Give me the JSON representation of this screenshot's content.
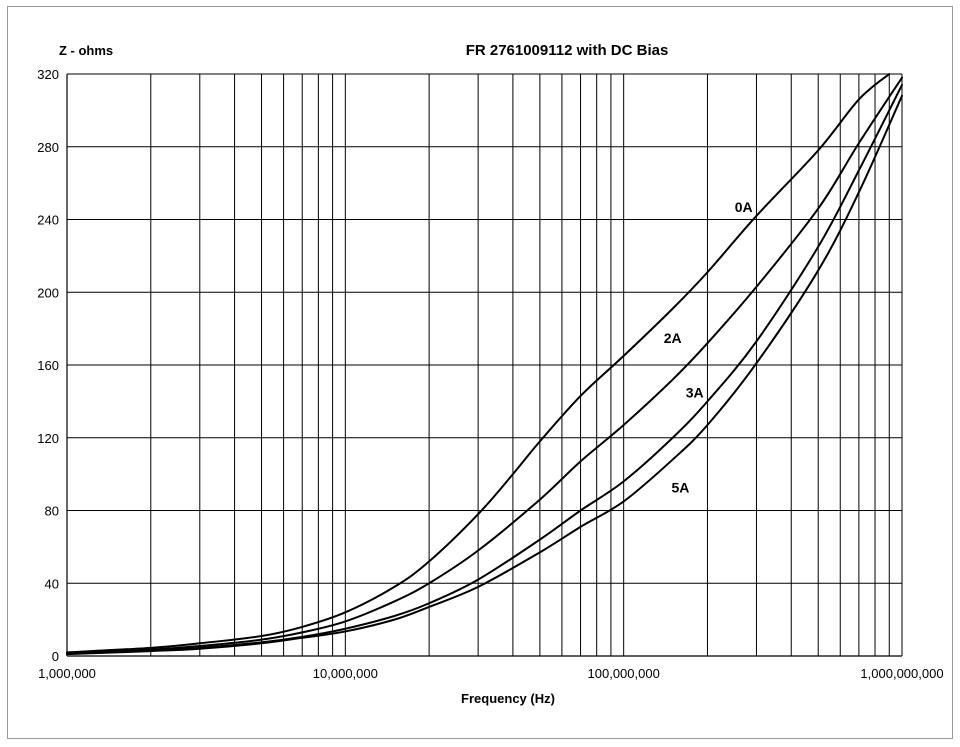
{
  "chart_data": {
    "type": "line",
    "title": "FR 2761009112 with DC Bias",
    "ylabel": "Z - ohms",
    "xlabel": "Frequency (Hz)",
    "x_scale": "log",
    "xlim": [
      1000000,
      1000000000
    ],
    "ylim": [
      0,
      320
    ],
    "grid": true,
    "x_ticks": [
      1000000,
      10000000,
      100000000,
      1000000000
    ],
    "x_tick_labels": [
      "1,000,000",
      "10,000,000",
      "100,000,000",
      "1,000,000,000"
    ],
    "y_ticks": [
      0,
      40,
      80,
      120,
      160,
      200,
      240,
      280,
      320
    ],
    "y_tick_labels": [
      "0",
      "40",
      "80",
      "120",
      "160",
      "200",
      "240",
      "280",
      "320"
    ],
    "series": [
      {
        "name": "0A",
        "x": [
          1000000,
          2000000,
          3000000,
          5000000,
          7000000,
          10000000,
          15000000,
          20000000,
          30000000,
          40000000,
          50000000,
          70000000,
          100000000,
          150000000,
          200000000,
          300000000,
          500000000,
          700000000,
          900000000
        ],
        "y": [
          2,
          4.5,
          7,
          11,
          16,
          24,
          38,
          52,
          78,
          100,
          118,
          143,
          165,
          191,
          211,
          242,
          278,
          306,
          320
        ]
      },
      {
        "name": "2A",
        "x": [
          1000000,
          2000000,
          3000000,
          5000000,
          7000000,
          10000000,
          15000000,
          20000000,
          30000000,
          50000000,
          70000000,
          100000000,
          150000000,
          200000000,
          300000000,
          500000000,
          700000000,
          1000000000
        ],
        "y": [
          1.5,
          3.5,
          5.5,
          9,
          13,
          19,
          30,
          40,
          58,
          86,
          107,
          127,
          152,
          172,
          203,
          246,
          282,
          318
        ]
      },
      {
        "name": "3A",
        "x": [
          1000000,
          2000000,
          3000000,
          5000000,
          7000000,
          10000000,
          15000000,
          20000000,
          30000000,
          50000000,
          70000000,
          100000000,
          150000000,
          200000000,
          300000000,
          500000000,
          700000000,
          1000000000
        ],
        "y": [
          1.2,
          3,
          4.5,
          7.5,
          10.5,
          15,
          22,
          29,
          42,
          64,
          80,
          96,
          120,
          140,
          173,
          225,
          267,
          314
        ]
      },
      {
        "name": "5A",
        "x": [
          1000000,
          2000000,
          3000000,
          5000000,
          7000000,
          10000000,
          15000000,
          20000000,
          30000000,
          50000000,
          70000000,
          100000000,
          150000000,
          200000000,
          300000000,
          500000000,
          700000000,
          1000000000
        ],
        "y": [
          1,
          2.7,
          4,
          7,
          10,
          13.5,
          20,
          27,
          38,
          57,
          71,
          85,
          108,
          127,
          161,
          212,
          255,
          308
        ]
      }
    ],
    "labels": [
      {
        "text": "0A",
        "x": 270000000,
        "y": 244
      },
      {
        "text": "2A",
        "x": 150000000,
        "y": 172
      },
      {
        "text": "3A",
        "x": 180000000,
        "y": 142
      },
      {
        "text": "5A",
        "x": 160000000,
        "y": 90
      }
    ]
  }
}
